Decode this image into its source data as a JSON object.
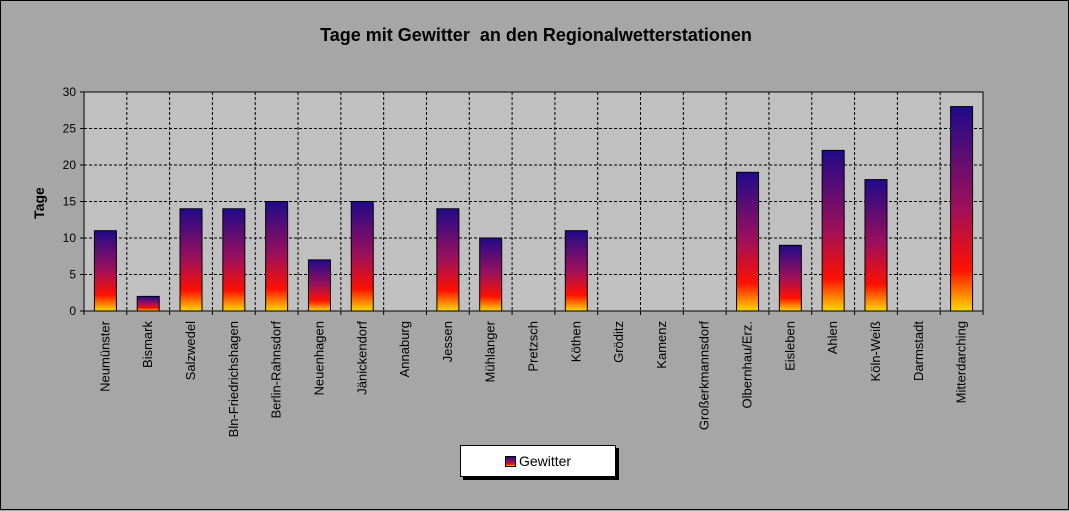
{
  "chart_data": {
    "type": "bar",
    "title": "Tage mit Gewitter  an den Regionalwetterstationen",
    "ylabel": "Tage",
    "xlabel": "",
    "ylim": [
      0,
      30
    ],
    "yticks": [
      0,
      5,
      10,
      15,
      20,
      25,
      30
    ],
    "grid": true,
    "legend_position": "bottom",
    "categories": [
      "Neumünster",
      "Bismark",
      "Salzwedel",
      "Bln-Friedrichshagen",
      "Berlin-Rahnsdorf",
      "Neuenhagen",
      "Jänickendorf",
      "Annaburg",
      "Jessen",
      "Mühlanger",
      "Pretzsch",
      "Köthen",
      "Gröditz",
      "Kamenz",
      "Großerkmannsdorf",
      "Olbernhau/Erz.",
      "Eisleben",
      "Ahlen",
      "Köln-Weiß",
      "Darmstadt",
      "Mitterdarching"
    ],
    "series": [
      {
        "name": "Gewitter",
        "values": [
          11,
          2,
          14,
          14,
          15,
          7,
          15,
          0,
          14,
          10,
          0,
          11,
          0,
          0,
          0,
          19,
          9,
          22,
          18,
          0,
          28
        ]
      }
    ],
    "colors": {
      "plot_background": "#c0c0c0",
      "chart_background": "#a6a6a6",
      "bar_top": "#1f0a8a",
      "bar_mid": "#a0105a",
      "bar_low": "#ff1000",
      "bar_bottom": "#ffe000"
    }
  }
}
